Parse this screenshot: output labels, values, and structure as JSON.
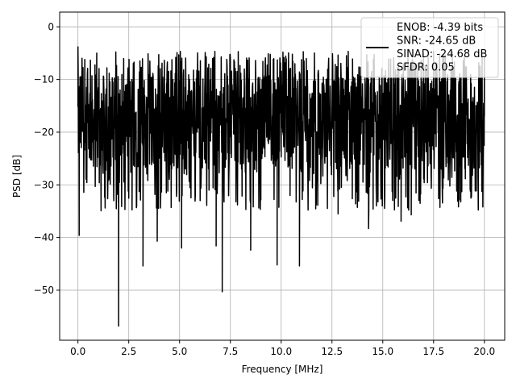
{
  "chart_data": {
    "type": "line",
    "xlabel": "Frequency [MHz]",
    "ylabel": "PSD [dB]",
    "xlim": [
      -0.9,
      21.0
    ],
    "ylim": [
      -59.5,
      2.8
    ],
    "xticks": [
      0.0,
      2.5,
      5.0,
      7.5,
      10.0,
      12.5,
      15.0,
      17.5,
      20.0
    ],
    "xtick_labels": [
      "0.0",
      "2.5",
      "5.0",
      "7.5",
      "10.0",
      "12.5",
      "15.0",
      "17.5",
      "20.0"
    ],
    "yticks": [
      0,
      -10,
      -20,
      -30,
      -40,
      -50
    ],
    "ytick_labels": [
      "0",
      "−10",
      "−20",
      "−30",
      "−40",
      "−50"
    ],
    "grid": true,
    "legend": {
      "placement": "top-right",
      "entries": [
        "ENOB: -4.39 bits",
        "SNR: -24.65 dB",
        "SINAD: -24.68 dB",
        "SFDR: 0.05"
      ]
    },
    "series": [
      {
        "color": "#000000",
        "description": "noise-like PSD spanning 0 to 20 MHz, mostly between about -30 and -8 dB",
        "x": [
          0.0,
          0.03,
          0.06,
          0.1,
          2.0,
          3.2,
          3.9,
          5.1,
          6.8,
          7.1,
          8.5,
          9.8,
          10.9,
          12.8,
          14.3,
          15.9,
          16.4,
          18.0,
          20.0
        ],
        "y": [
          -3.8,
          -18.0,
          -39.6,
          -9.5,
          -56.8,
          -45.4,
          -40.7,
          -42.0,
          -41.6,
          -50.3,
          -42.4,
          -45.2,
          -45.4,
          -35.5,
          -38.3,
          -36.9,
          -35.7,
          -28.7,
          -17.0
        ],
        "band_low": -27.0,
        "band_high": -9.0,
        "spike_max": -4.6
      }
    ]
  }
}
